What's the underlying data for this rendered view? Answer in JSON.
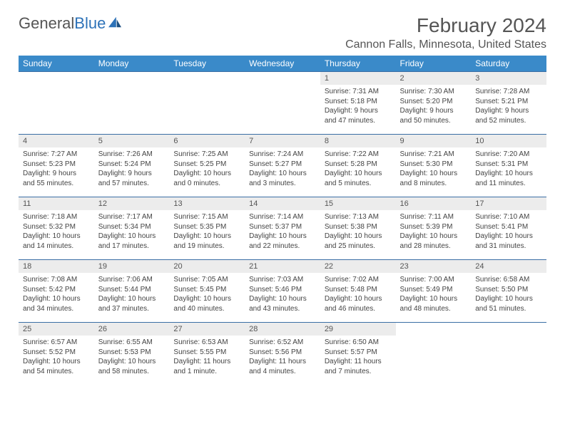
{
  "logo": {
    "text_a": "General",
    "text_b": "Blue"
  },
  "title": "February 2024",
  "location": "Cannon Falls, Minnesota, United States",
  "colors": {
    "header_bg": "#3a8ac9",
    "header_fg": "#ffffff",
    "row_border": "#3a6ea5",
    "daynum_bg": "#ececec",
    "text": "#555555",
    "logo_blue": "#2d72b8"
  },
  "day_headers": [
    "Sunday",
    "Monday",
    "Tuesday",
    "Wednesday",
    "Thursday",
    "Friday",
    "Saturday"
  ],
  "weeks": [
    [
      null,
      null,
      null,
      null,
      {
        "n": "1",
        "sunrise": "Sunrise: 7:31 AM",
        "sunset": "Sunset: 5:18 PM",
        "daylight": "Daylight: 9 hours and 47 minutes."
      },
      {
        "n": "2",
        "sunrise": "Sunrise: 7:30 AM",
        "sunset": "Sunset: 5:20 PM",
        "daylight": "Daylight: 9 hours and 50 minutes."
      },
      {
        "n": "3",
        "sunrise": "Sunrise: 7:28 AM",
        "sunset": "Sunset: 5:21 PM",
        "daylight": "Daylight: 9 hours and 52 minutes."
      }
    ],
    [
      {
        "n": "4",
        "sunrise": "Sunrise: 7:27 AM",
        "sunset": "Sunset: 5:23 PM",
        "daylight": "Daylight: 9 hours and 55 minutes."
      },
      {
        "n": "5",
        "sunrise": "Sunrise: 7:26 AM",
        "sunset": "Sunset: 5:24 PM",
        "daylight": "Daylight: 9 hours and 57 minutes."
      },
      {
        "n": "6",
        "sunrise": "Sunrise: 7:25 AM",
        "sunset": "Sunset: 5:25 PM",
        "daylight": "Daylight: 10 hours and 0 minutes."
      },
      {
        "n": "7",
        "sunrise": "Sunrise: 7:24 AM",
        "sunset": "Sunset: 5:27 PM",
        "daylight": "Daylight: 10 hours and 3 minutes."
      },
      {
        "n": "8",
        "sunrise": "Sunrise: 7:22 AM",
        "sunset": "Sunset: 5:28 PM",
        "daylight": "Daylight: 10 hours and 5 minutes."
      },
      {
        "n": "9",
        "sunrise": "Sunrise: 7:21 AM",
        "sunset": "Sunset: 5:30 PM",
        "daylight": "Daylight: 10 hours and 8 minutes."
      },
      {
        "n": "10",
        "sunrise": "Sunrise: 7:20 AM",
        "sunset": "Sunset: 5:31 PM",
        "daylight": "Daylight: 10 hours and 11 minutes."
      }
    ],
    [
      {
        "n": "11",
        "sunrise": "Sunrise: 7:18 AM",
        "sunset": "Sunset: 5:32 PM",
        "daylight": "Daylight: 10 hours and 14 minutes."
      },
      {
        "n": "12",
        "sunrise": "Sunrise: 7:17 AM",
        "sunset": "Sunset: 5:34 PM",
        "daylight": "Daylight: 10 hours and 17 minutes."
      },
      {
        "n": "13",
        "sunrise": "Sunrise: 7:15 AM",
        "sunset": "Sunset: 5:35 PM",
        "daylight": "Daylight: 10 hours and 19 minutes."
      },
      {
        "n": "14",
        "sunrise": "Sunrise: 7:14 AM",
        "sunset": "Sunset: 5:37 PM",
        "daylight": "Daylight: 10 hours and 22 minutes."
      },
      {
        "n": "15",
        "sunrise": "Sunrise: 7:13 AM",
        "sunset": "Sunset: 5:38 PM",
        "daylight": "Daylight: 10 hours and 25 minutes."
      },
      {
        "n": "16",
        "sunrise": "Sunrise: 7:11 AM",
        "sunset": "Sunset: 5:39 PM",
        "daylight": "Daylight: 10 hours and 28 minutes."
      },
      {
        "n": "17",
        "sunrise": "Sunrise: 7:10 AM",
        "sunset": "Sunset: 5:41 PM",
        "daylight": "Daylight: 10 hours and 31 minutes."
      }
    ],
    [
      {
        "n": "18",
        "sunrise": "Sunrise: 7:08 AM",
        "sunset": "Sunset: 5:42 PM",
        "daylight": "Daylight: 10 hours and 34 minutes."
      },
      {
        "n": "19",
        "sunrise": "Sunrise: 7:06 AM",
        "sunset": "Sunset: 5:44 PM",
        "daylight": "Daylight: 10 hours and 37 minutes."
      },
      {
        "n": "20",
        "sunrise": "Sunrise: 7:05 AM",
        "sunset": "Sunset: 5:45 PM",
        "daylight": "Daylight: 10 hours and 40 minutes."
      },
      {
        "n": "21",
        "sunrise": "Sunrise: 7:03 AM",
        "sunset": "Sunset: 5:46 PM",
        "daylight": "Daylight: 10 hours and 43 minutes."
      },
      {
        "n": "22",
        "sunrise": "Sunrise: 7:02 AM",
        "sunset": "Sunset: 5:48 PM",
        "daylight": "Daylight: 10 hours and 46 minutes."
      },
      {
        "n": "23",
        "sunrise": "Sunrise: 7:00 AM",
        "sunset": "Sunset: 5:49 PM",
        "daylight": "Daylight: 10 hours and 48 minutes."
      },
      {
        "n": "24",
        "sunrise": "Sunrise: 6:58 AM",
        "sunset": "Sunset: 5:50 PM",
        "daylight": "Daylight: 10 hours and 51 minutes."
      }
    ],
    [
      {
        "n": "25",
        "sunrise": "Sunrise: 6:57 AM",
        "sunset": "Sunset: 5:52 PM",
        "daylight": "Daylight: 10 hours and 54 minutes."
      },
      {
        "n": "26",
        "sunrise": "Sunrise: 6:55 AM",
        "sunset": "Sunset: 5:53 PM",
        "daylight": "Daylight: 10 hours and 58 minutes."
      },
      {
        "n": "27",
        "sunrise": "Sunrise: 6:53 AM",
        "sunset": "Sunset: 5:55 PM",
        "daylight": "Daylight: 11 hours and 1 minute."
      },
      {
        "n": "28",
        "sunrise": "Sunrise: 6:52 AM",
        "sunset": "Sunset: 5:56 PM",
        "daylight": "Daylight: 11 hours and 4 minutes."
      },
      {
        "n": "29",
        "sunrise": "Sunrise: 6:50 AM",
        "sunset": "Sunset: 5:57 PM",
        "daylight": "Daylight: 11 hours and 7 minutes."
      },
      null,
      null
    ]
  ]
}
